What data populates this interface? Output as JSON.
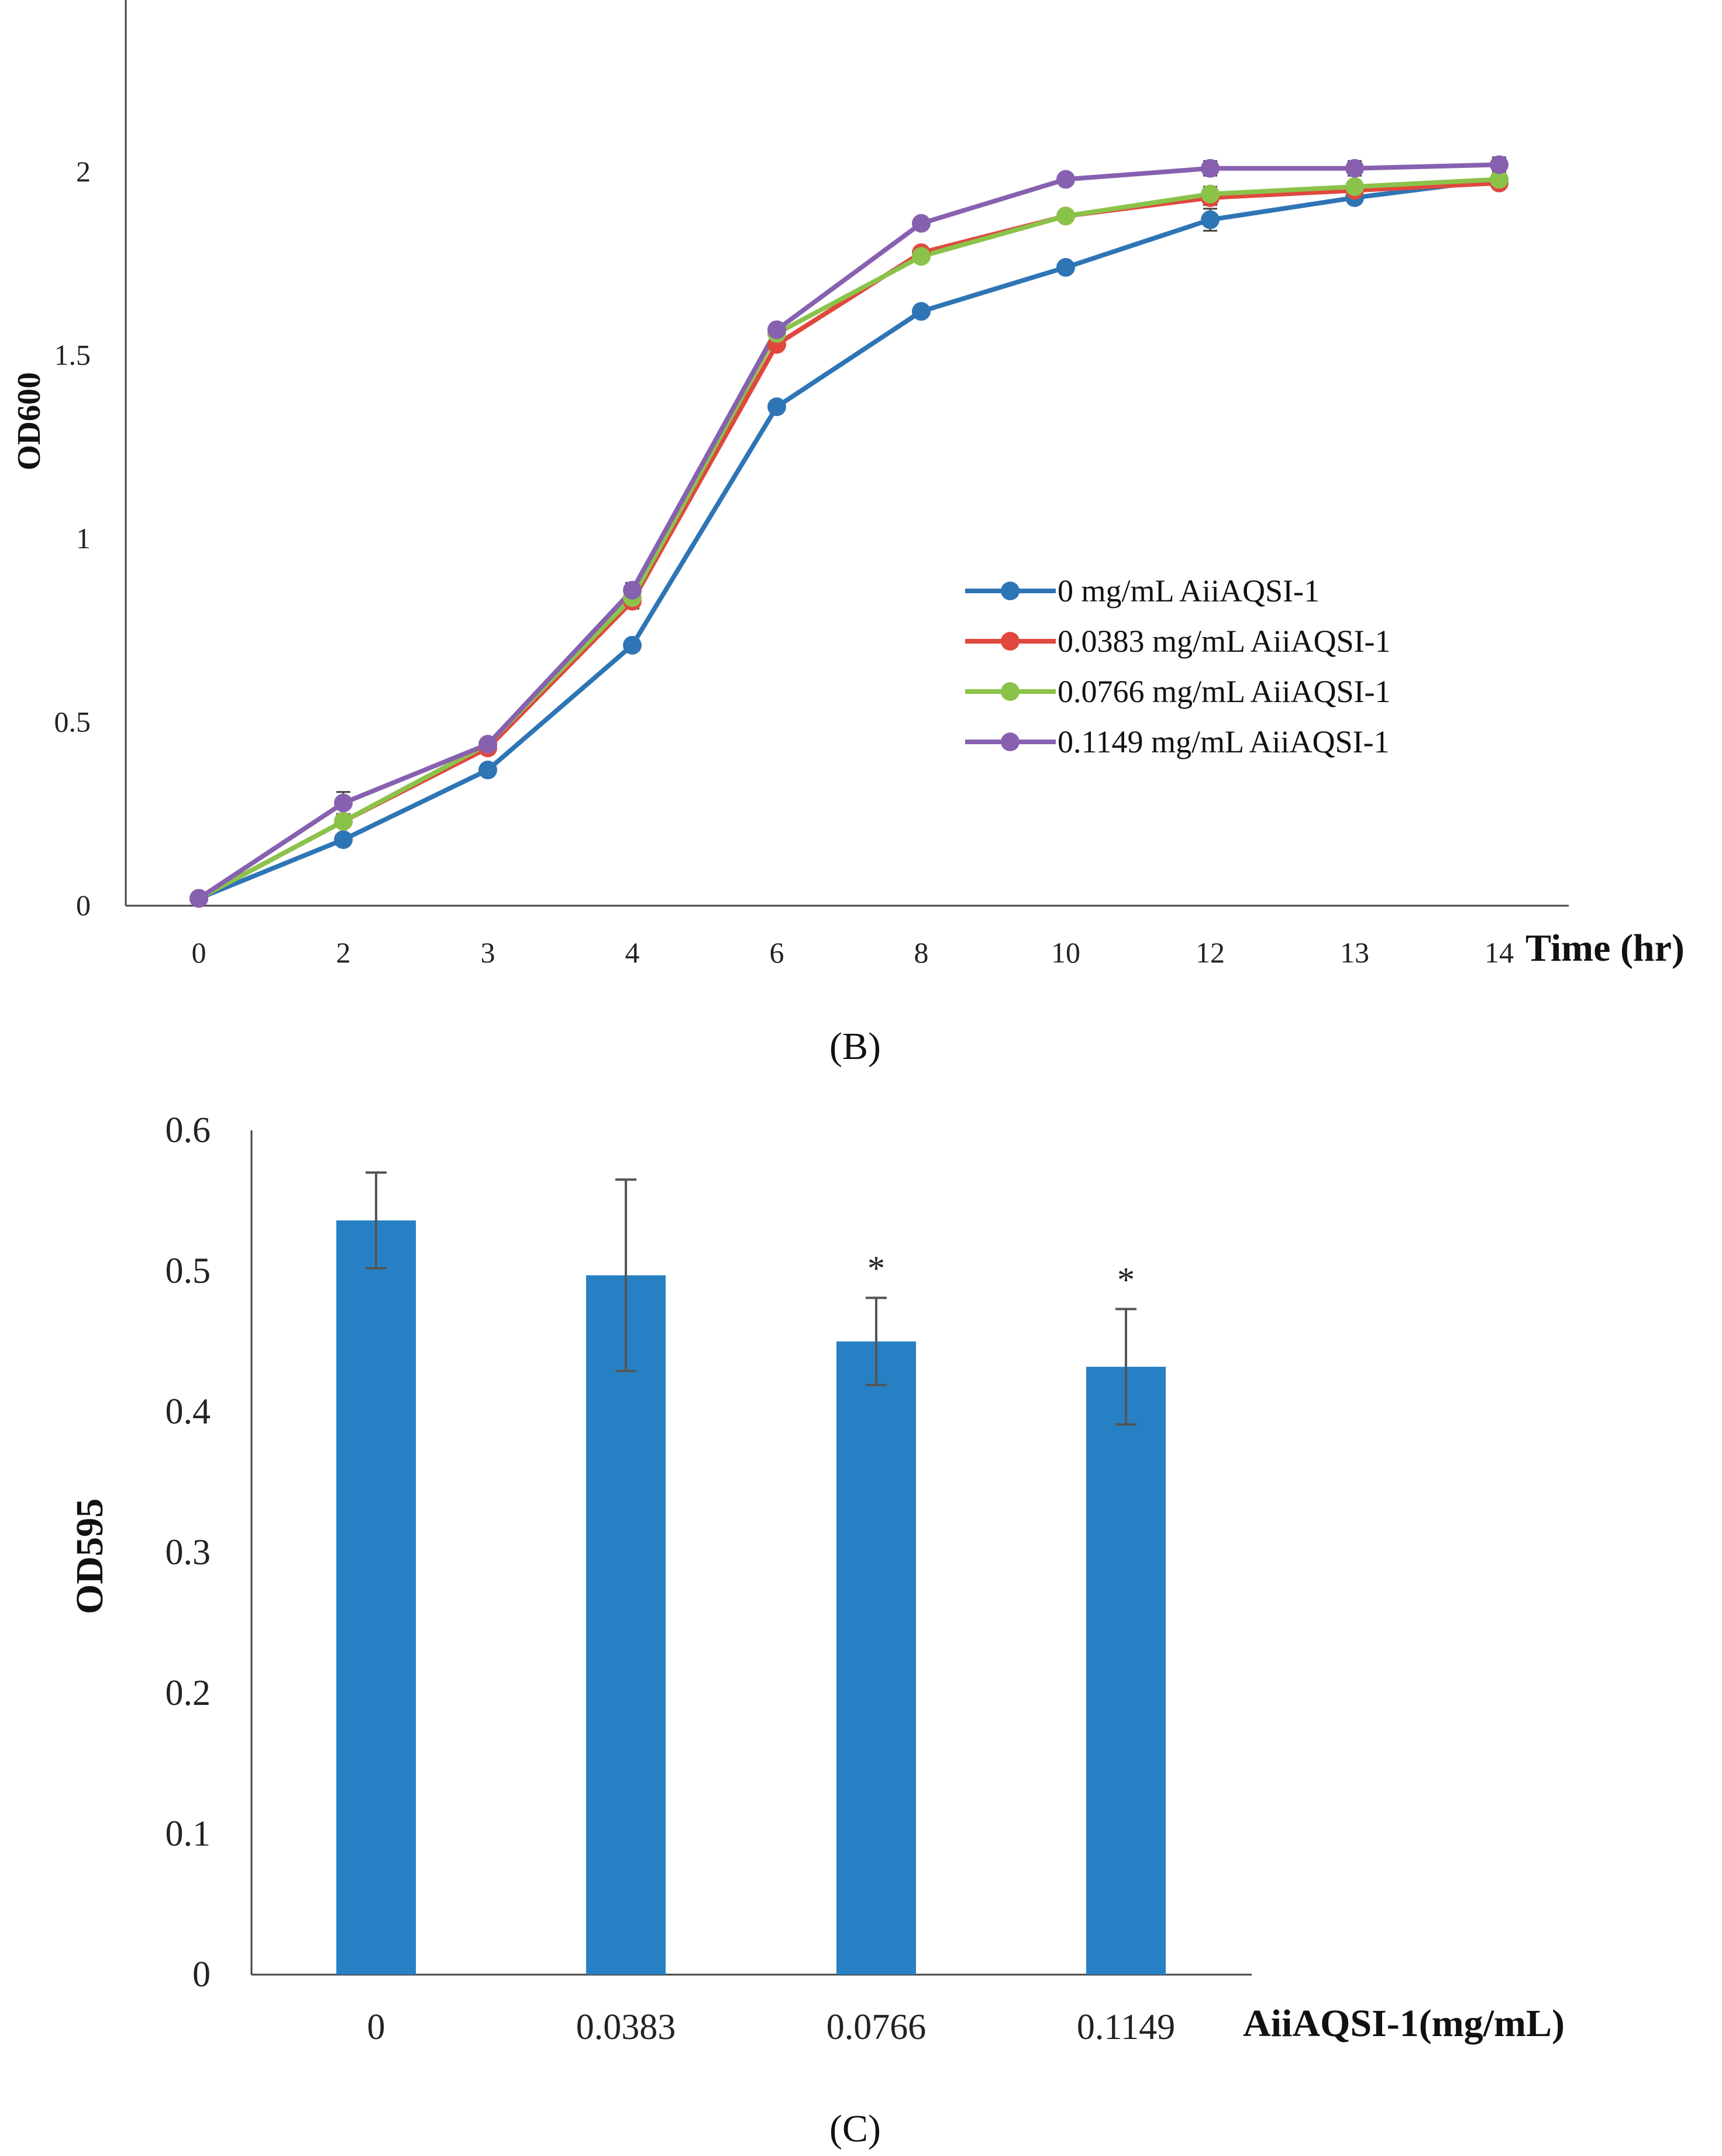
{
  "chart_data": [
    {
      "type": "line",
      "panel_label": "(B)",
      "xlabel": "Time (hr)",
      "ylabel": "OD600",
      "categories": [
        "0",
        "2",
        "3",
        "4",
        "6",
        "8",
        "10",
        "12",
        "13",
        "14"
      ],
      "yticks": [
        "0",
        "0.5",
        "1",
        "1.5",
        "2"
      ],
      "ylim": [
        0,
        2.4
      ],
      "grid": false,
      "legend_position": "right-middle",
      "series": [
        {
          "name": "0 mg/mL AiiAQSI-1",
          "color": "#2e75b6",
          "values": [
            0.02,
            0.18,
            0.37,
            0.71,
            1.36,
            1.62,
            1.74,
            1.87,
            1.93,
            1.98
          ],
          "errors": [
            0.0,
            0.01,
            0.01,
            0.01,
            0.01,
            0.01,
            0.01,
            0.03,
            0.01,
            0.01
          ]
        },
        {
          "name": "0.0383 mg/mL AiiAQSI-1",
          "color": "#e0483e",
          "values": [
            0.02,
            0.23,
            0.43,
            0.83,
            1.53,
            1.78,
            1.88,
            1.93,
            1.95,
            1.97
          ],
          "errors": [
            0.0,
            0.01,
            0.01,
            0.02,
            0.01,
            0.01,
            0.01,
            0.02,
            0.02,
            0.01
          ]
        },
        {
          "name": "0.0766 mg/mL AiiAQSI-1",
          "color": "#8bc34a",
          "values": [
            0.02,
            0.23,
            0.44,
            0.84,
            1.56,
            1.77,
            1.88,
            1.94,
            1.96,
            1.98
          ],
          "errors": [
            0.0,
            0.01,
            0.01,
            0.02,
            0.01,
            0.01,
            0.01,
            0.02,
            0.01,
            0.01
          ]
        },
        {
          "name": "0.1149 mg/mL AiiAQSI-1",
          "color": "#8761b0",
          "values": [
            0.02,
            0.28,
            0.44,
            0.86,
            1.57,
            1.86,
            1.98,
            2.01,
            2.01,
            2.02
          ],
          "errors": [
            0.0,
            0.03,
            0.01,
            0.02,
            0.01,
            0.01,
            0.01,
            0.02,
            0.02,
            0.02
          ]
        }
      ]
    },
    {
      "type": "bar",
      "panel_label": "(C)",
      "xlabel": "AiiAQSI-1(mg/mL)",
      "ylabel": "OD595",
      "categories": [
        "0",
        "0.0383",
        "0.0766",
        "0.1149"
      ],
      "values": [
        0.536,
        0.497,
        0.45,
        0.432
      ],
      "errors": [
        0.034,
        0.068,
        0.031,
        0.041
      ],
      "annotations": [
        "",
        "",
        "*",
        "*"
      ],
      "yticks": [
        "0",
        "0.1",
        "0.2",
        "0.3",
        "0.4",
        "0.5",
        "0.6"
      ],
      "ylim": [
        0,
        0.6
      ],
      "color": "#2880c4",
      "grid": false
    }
  ]
}
